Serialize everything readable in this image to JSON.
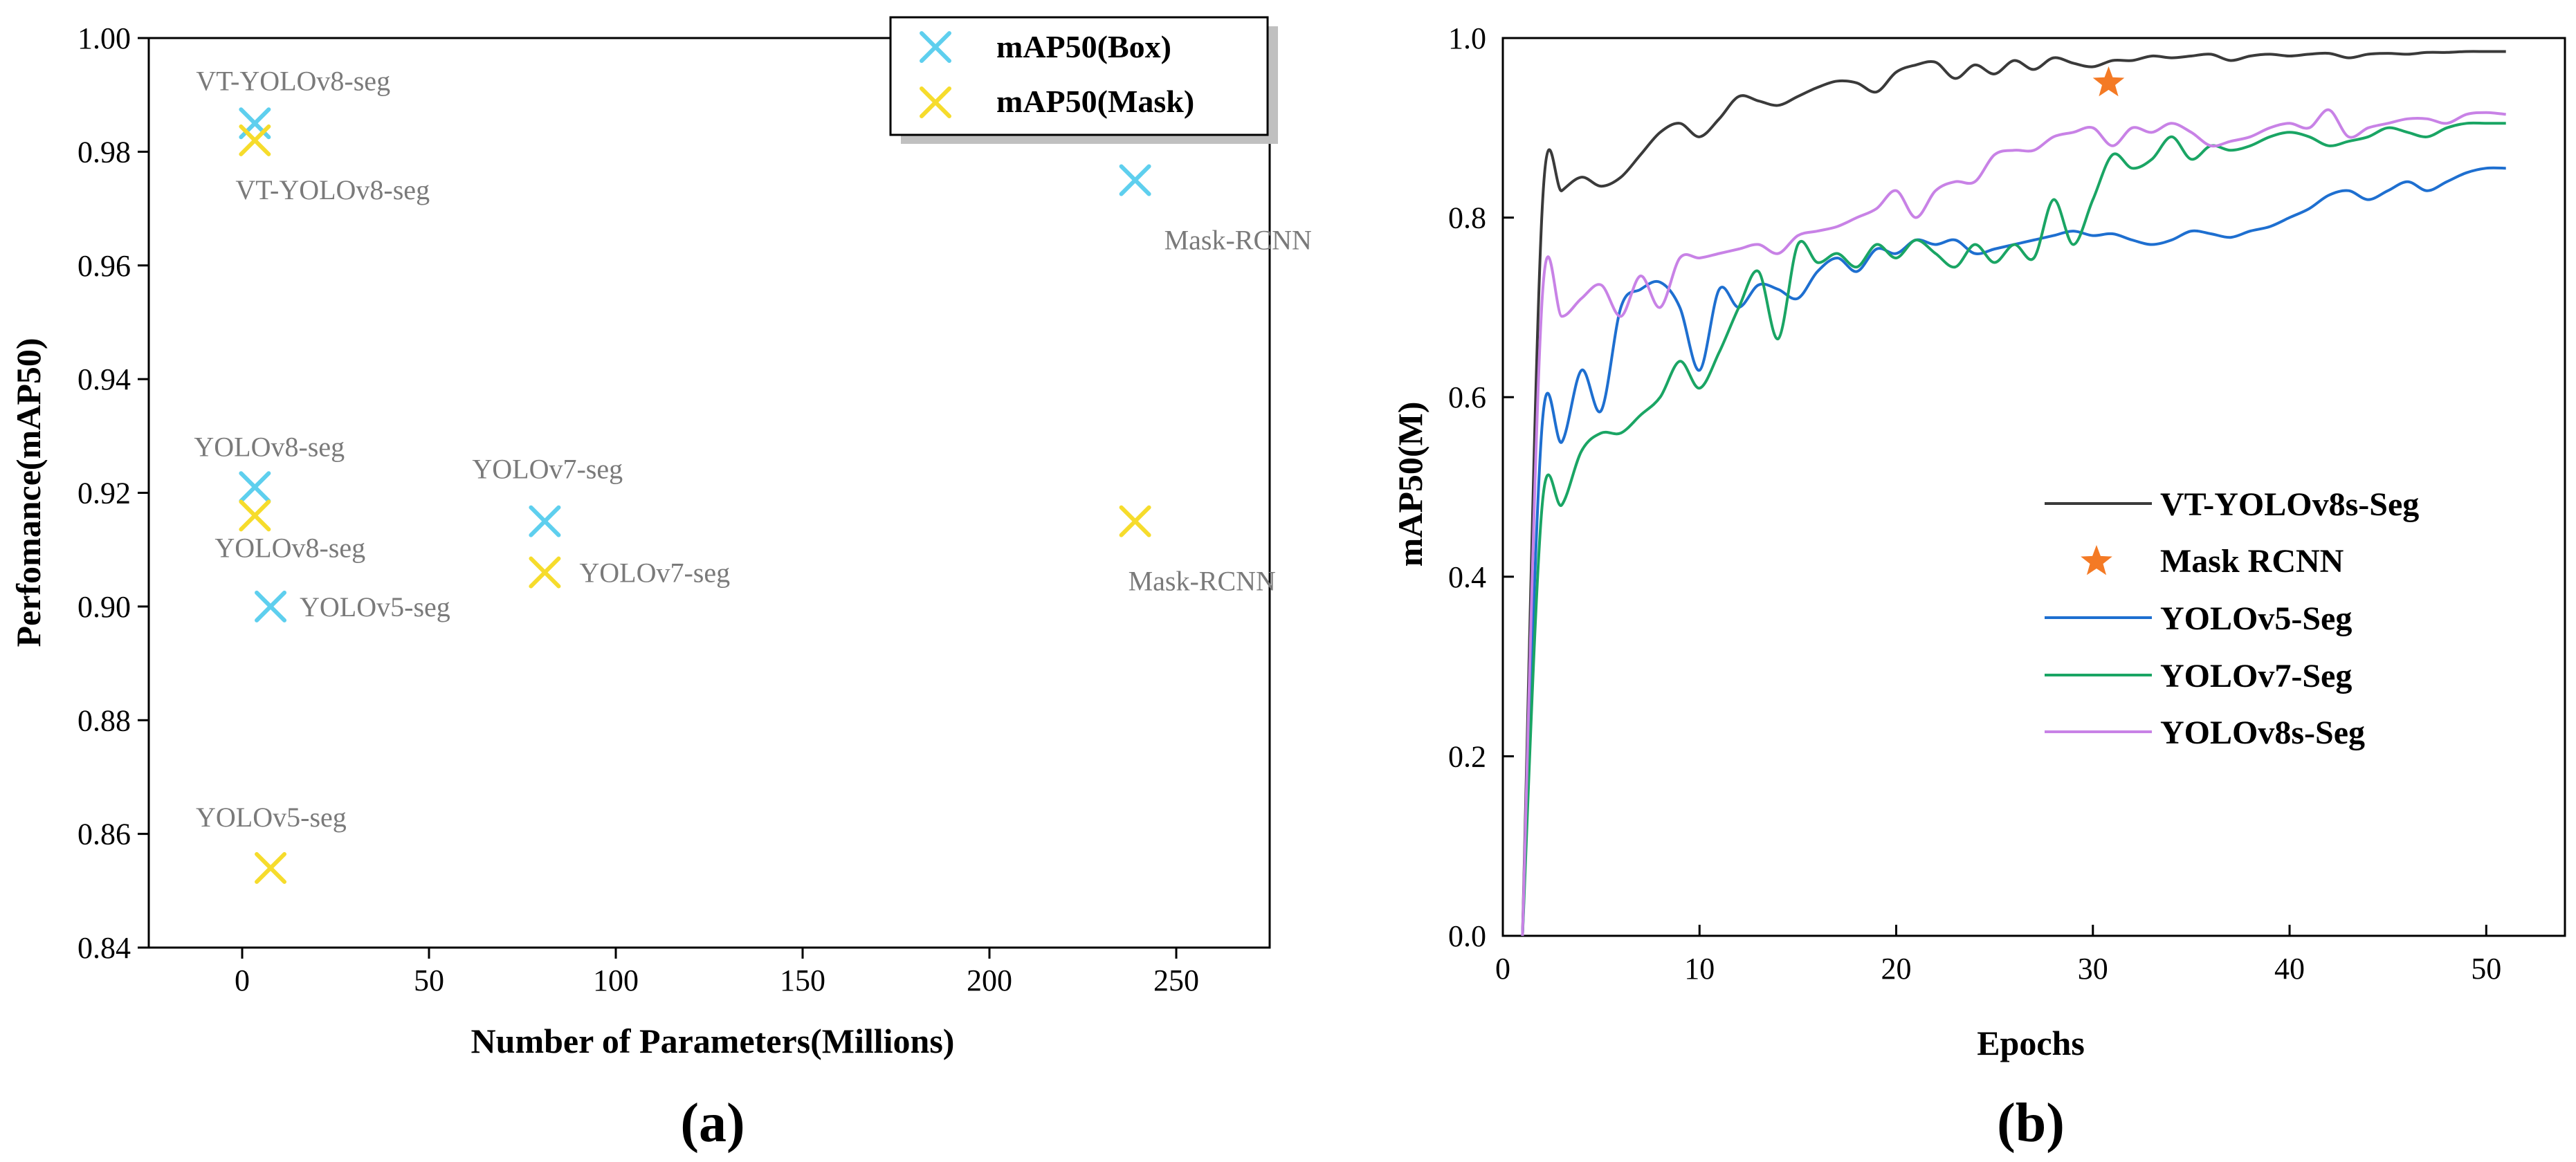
{
  "colors": {
    "box": "#5ecfee",
    "mask": "#f6dc2c",
    "vt": "#3a3a3a",
    "maskrcnn": "#f47a25",
    "yolov5": "#1e6fd0",
    "yolov7": "#1aa564",
    "yolov8": "#c882e6"
  },
  "chart_data": [
    {
      "type": "scatter",
      "panel_label": "(a)",
      "xlabel": "Number of Parameters(Millions)",
      "ylabel": "Perfomance(mAP50)",
      "xlim": [
        -25,
        275
      ],
      "ylim": [
        0.84,
        1.0
      ],
      "xticks": [
        "0",
        "50",
        "100",
        "150",
        "200",
        "250"
      ],
      "yticks": [
        "0.84",
        "0.86",
        "0.88",
        "0.90",
        "0.92",
        "0.94",
        "0.96",
        "0.98",
        "1.00"
      ],
      "legend": [
        "mAP50(Box)",
        "mAP50(Mask)"
      ],
      "series": [
        {
          "name": "mAP50(Box)",
          "points": [
            {
              "x": 3.4,
              "y": 0.985,
              "label": "VT-YOLOv8-seg"
            },
            {
              "x": 3.4,
              "y": 0.921,
              "label": "YOLOv8-seg"
            },
            {
              "x": 7.6,
              "y": 0.9,
              "label": "YOLOv5-seg"
            },
            {
              "x": 81.0,
              "y": 0.915,
              "label": "YOLOv7-seg"
            },
            {
              "x": 239.0,
              "y": 0.975,
              "label": "Mask-RCNN"
            }
          ]
        },
        {
          "name": "mAP50(Mask)",
          "points": [
            {
              "x": 3.4,
              "y": 0.982,
              "label": "VT-YOLOv8-seg"
            },
            {
              "x": 3.4,
              "y": 0.916,
              "label": "YOLOv8-seg"
            },
            {
              "x": 7.6,
              "y": 0.854,
              "label": "YOLOv5-seg"
            },
            {
              "x": 81.0,
              "y": 0.906,
              "label": "YOLOv7-seg"
            },
            {
              "x": 239.0,
              "y": 0.915,
              "label": "Mask-RCNN"
            }
          ]
        }
      ]
    },
    {
      "type": "line",
      "panel_label": "(b)",
      "xlabel": "Epochs",
      "ylabel": "mAP50(M)",
      "xlim": [
        0,
        54
      ],
      "ylim": [
        0.0,
        1.0
      ],
      "xticks": [
        "0",
        "10",
        "20",
        "30",
        "40",
        "50"
      ],
      "yticks": [
        "0.0",
        "0.2",
        "0.4",
        "0.6",
        "0.8",
        "1.0"
      ],
      "legend": [
        "VT-YOLOv8s-Seg",
        "Mask RCNN",
        "YOLOv5-Seg",
        "YOLOv7-Seg",
        "YOLOv8s-Seg"
      ],
      "x": [
        1,
        2,
        3,
        4,
        5,
        6,
        7,
        8,
        9,
        10,
        11,
        12,
        13,
        14,
        15,
        16,
        17,
        18,
        19,
        20,
        21,
        22,
        23,
        24,
        25,
        26,
        27,
        28,
        29,
        30,
        31,
        32,
        33,
        34,
        35,
        36,
        37,
        38,
        39,
        40,
        41,
        42,
        43,
        44,
        45,
        46,
        47,
        48,
        49,
        50,
        51
      ],
      "series": [
        {
          "name": "VT-YOLOv8s-Seg",
          "values": [
            0.0,
            0.81,
            0.83,
            0.845,
            0.835,
            0.845,
            0.87,
            0.895,
            0.905,
            0.89,
            0.91,
            0.935,
            0.93,
            0.925,
            0.935,
            0.945,
            0.952,
            0.95,
            0.94,
            0.962,
            0.97,
            0.973,
            0.955,
            0.97,
            0.96,
            0.975,
            0.965,
            0.978,
            0.972,
            0.968,
            0.975,
            0.975,
            0.98,
            0.978,
            0.98,
            0.982,
            0.975,
            0.98,
            0.982,
            0.98,
            0.982,
            0.983,
            0.978,
            0.982,
            0.983,
            0.982,
            0.984,
            0.984,
            0.985,
            0.985,
            0.985
          ]
        },
        {
          "name": "YOLOv5-Seg",
          "values": [
            0.0,
            0.57,
            0.55,
            0.63,
            0.585,
            0.7,
            0.72,
            0.728,
            0.7,
            0.63,
            0.72,
            0.7,
            0.725,
            0.72,
            0.71,
            0.74,
            0.755,
            0.74,
            0.765,
            0.76,
            0.775,
            0.77,
            0.775,
            0.76,
            0.765,
            0.77,
            0.775,
            0.78,
            0.785,
            0.78,
            0.782,
            0.775,
            0.77,
            0.775,
            0.785,
            0.782,
            0.778,
            0.785,
            0.79,
            0.8,
            0.81,
            0.825,
            0.83,
            0.82,
            0.83,
            0.84,
            0.83,
            0.84,
            0.85,
            0.855,
            0.855
          ]
        },
        {
          "name": "YOLOv7-Seg",
          "values": [
            0.0,
            0.48,
            0.48,
            0.54,
            0.56,
            0.56,
            0.58,
            0.6,
            0.64,
            0.61,
            0.65,
            0.7,
            0.74,
            0.665,
            0.77,
            0.75,
            0.76,
            0.745,
            0.77,
            0.755,
            0.775,
            0.76,
            0.745,
            0.77,
            0.75,
            0.77,
            0.755,
            0.82,
            0.77,
            0.82,
            0.87,
            0.855,
            0.865,
            0.89,
            0.865,
            0.88,
            0.875,
            0.88,
            0.89,
            0.895,
            0.89,
            0.88,
            0.885,
            0.89,
            0.9,
            0.895,
            0.89,
            0.9,
            0.905,
            0.905,
            0.905
          ]
        },
        {
          "name": "YOLOv8s-Seg",
          "values": [
            0.0,
            0.71,
            0.69,
            0.71,
            0.725,
            0.69,
            0.735,
            0.7,
            0.755,
            0.755,
            0.76,
            0.765,
            0.77,
            0.76,
            0.78,
            0.785,
            0.79,
            0.8,
            0.81,
            0.83,
            0.8,
            0.83,
            0.84,
            0.84,
            0.87,
            0.875,
            0.875,
            0.89,
            0.895,
            0.9,
            0.88,
            0.9,
            0.895,
            0.905,
            0.895,
            0.88,
            0.885,
            0.89,
            0.9,
            0.905,
            0.9,
            0.92,
            0.89,
            0.9,
            0.905,
            0.91,
            0.91,
            0.905,
            0.915,
            0.917,
            0.915
          ]
        }
      ],
      "markers": [
        {
          "name": "Mask RCNN",
          "x": 30.8,
          "y": 0.95
        }
      ]
    }
  ]
}
